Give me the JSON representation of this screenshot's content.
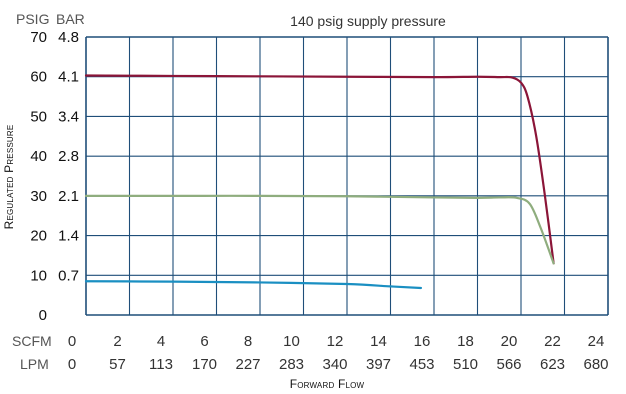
{
  "chart_data": {
    "type": "line",
    "title": "140 psig supply pressure",
    "xlabel": "Forward Flow",
    "ylabel": "Regulated Pressure",
    "y_unit_primary": "PSIG",
    "y_unit_secondary": "BAR",
    "ylim": [
      0,
      70
    ],
    "y_ticks_psig": [
      "0",
      "10",
      "20",
      "30",
      "40",
      "50",
      "60",
      "70"
    ],
    "y_ticks_bar": [
      "",
      "0.7",
      "1.4",
      "2.1",
      "2.8",
      "3.4",
      "4.1",
      "4.8"
    ],
    "x_unit_primary": "SCFM",
    "x_unit_secondary": "LPM",
    "xlim": [
      0,
      24
    ],
    "x_ticks_scfm": [
      "0",
      "2",
      "4",
      "6",
      "8",
      "10",
      "12",
      "14",
      "16",
      "18",
      "20",
      "22",
      "24"
    ],
    "x_ticks_lpm": [
      "0",
      "57",
      "113",
      "170",
      "227",
      "283",
      "340",
      "397",
      "453",
      "510",
      "566",
      "623",
      "680"
    ],
    "grid": true,
    "series": [
      {
        "color": "#8b1538",
        "x": [
          0,
          4,
          8,
          12,
          16,
          18,
          19,
          19.6,
          20,
          20.3,
          20.7,
          21.1,
          21.5
        ],
        "y": [
          60.3,
          60.2,
          60.1,
          60.0,
          59.9,
          60.0,
          59.9,
          59.8,
          58.5,
          55,
          45,
          30,
          13
        ]
      },
      {
        "color": "#8fad7e",
        "x": [
          0,
          4,
          8,
          12,
          16,
          18,
          19,
          19.8,
          20.4,
          20.9,
          21.5
        ],
        "y": [
          30.0,
          30.0,
          30.0,
          29.9,
          29.6,
          29.5,
          29.6,
          29.5,
          28,
          22,
          13
        ]
      },
      {
        "color": "#1a8fc2",
        "x": [
          0,
          4,
          8,
          12,
          14,
          15.4
        ],
        "y": [
          8.5,
          8.4,
          8.2,
          7.8,
          7.2,
          6.8
        ]
      }
    ]
  }
}
